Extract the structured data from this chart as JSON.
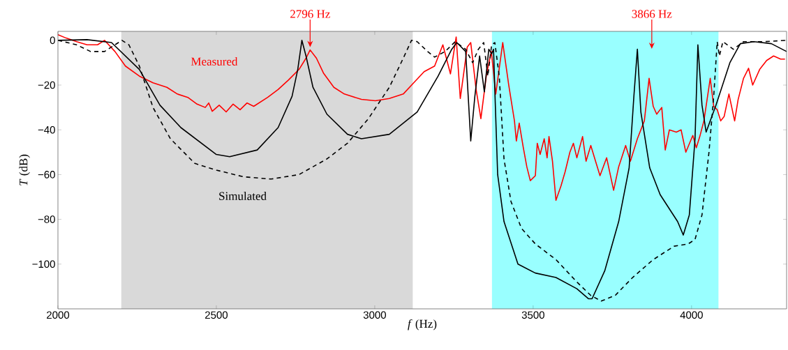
{
  "chart_data": {
    "type": "line",
    "xlabel": "*f* (Hz)",
    "ylabel": "*T* (dB)",
    "xlim": [
      2000,
      4300
    ],
    "ylim": [
      -120,
      4
    ],
    "xticks": [
      2000,
      2500,
      3000,
      3500,
      4000
    ],
    "yticks": [
      {
        "value": -100,
        "label": "−100"
      },
      {
        "value": -80,
        "label": "−80"
      },
      {
        "value": -60,
        "label": "−60"
      },
      {
        "value": -40,
        "label": "−40"
      },
      {
        "value": -20,
        "label": "−20"
      },
      0
    ],
    "bands": [
      {
        "axis": "x",
        "from": 2200,
        "to": 3120,
        "color": "#d9d9d9"
      },
      {
        "axis": "x",
        "from": 3370,
        "to": 4085,
        "color": "#99ffff"
      }
    ],
    "annotations": [
      {
        "text": "2796 Hz",
        "x": 2796,
        "y": -4.3
      },
      "3866 Hz"
    ],
    "marker": "none",
    "series": [
      {
        "name": "Measured",
        "color": "#ff0000",
        "line_style": "solid",
        "x": [
          2000,
          2026,
          2059,
          2092,
          2125,
          2147,
          2180,
          2213,
          2257,
          2300,
          2344,
          2377,
          2410,
          2439,
          2465,
          2476,
          2487,
          2509,
          2531,
          2553,
          2575,
          2597,
          2618,
          2662,
          2695,
          2728,
          2761,
          2783,
          2796,
          2816,
          2838,
          2871,
          2904,
          2958,
          3002,
          3046,
          3090,
          3123,
          3156,
          3189,
          3215,
          3239,
          3257,
          3270,
          3292,
          3303,
          3320,
          3335,
          3353,
          3368,
          3382,
          3404,
          3423,
          3441,
          3447,
          3456,
          3469,
          3480,
          3491,
          3507,
          3513,
          3522,
          3535,
          3544,
          3550,
          3561,
          3572,
          3588,
          3601,
          3616,
          3627,
          3638,
          3656,
          3667,
          3682,
          3697,
          3711,
          3732,
          3754,
          3770,
          3792,
          3807,
          3829,
          3851,
          3866,
          3879,
          3890,
          3906,
          3917,
          3930,
          3952,
          3967,
          3982,
          4004,
          4015,
          4026,
          4039,
          4059,
          4070,
          4081,
          4092,
          4103,
          4118,
          4136,
          4147,
          4164,
          4180,
          4193,
          4215,
          4237,
          4259,
          4281,
          4295
        ],
        "values": [
          2.5,
          1,
          -0.6,
          -2,
          -2,
          0,
          -5,
          -11.5,
          -16,
          -19,
          -21,
          -24,
          -25.5,
          -28.5,
          -30,
          -28,
          -31.7,
          -29,
          -32,
          -28.5,
          -31,
          -28,
          -29.5,
          -25.5,
          -22,
          -17.7,
          -13,
          -8,
          -4.3,
          -8,
          -14.6,
          -21,
          -24,
          -26.4,
          -27,
          -26,
          -24,
          -19,
          -14,
          -11.5,
          -2,
          -15,
          1.5,
          -26,
          -3,
          -1,
          -22,
          -35,
          -15,
          -5,
          -24,
          -1,
          -20,
          -36,
          -45,
          -37,
          -48,
          -56.5,
          -62.7,
          -60.5,
          -46,
          -51,
          -44,
          -52.5,
          -43,
          -54,
          -71.5,
          -65,
          -58.7,
          -50,
          -46,
          -52.5,
          -43,
          -54,
          -47,
          -54,
          -60.5,
          -52.5,
          -67,
          -56.5,
          -47,
          -54,
          -44,
          -36,
          -17,
          -29.5,
          -33,
          -30,
          -49,
          -40,
          -41,
          -40,
          -50,
          -42.5,
          -48,
          -43,
          -36,
          -17,
          -29.5,
          -31,
          -36,
          -34,
          -24,
          -36,
          -26.5,
          -17,
          -12.5,
          -20,
          -13,
          -9,
          -7,
          -8.4,
          -8.4
        ]
      },
      {
        "name": "Simulated",
        "color": "#000000",
        "line_style": "solid",
        "x": [
          2000,
          2092,
          2169,
          2257,
          2322,
          2388,
          2500,
          2542,
          2629,
          2695,
          2739,
          2757,
          2770,
          2783,
          2805,
          2849,
          2914,
          2958,
          3046,
          3134,
          3200,
          3243,
          3259,
          3287,
          3303,
          3316,
          3331,
          3346,
          3360,
          3369,
          3375,
          3379,
          3388,
          3408,
          3452,
          3507,
          3572,
          3638,
          3675,
          3686,
          3726,
          3770,
          3803,
          3818,
          3829,
          3840,
          3868,
          3901,
          3956,
          3974,
          3993,
          4011,
          4020,
          4033,
          4046,
          4077,
          4121,
          4154,
          4197,
          4252,
          4300
        ],
        "values": [
          0,
          0.3,
          -1,
          -13,
          -29,
          -39,
          -51,
          -52,
          -49,
          -39,
          -25,
          -13,
          0,
          -7,
          -21,
          -33,
          -42,
          -44,
          -42,
          -32,
          -16,
          -4,
          -1,
          -5,
          -45,
          -25,
          -7,
          -23,
          -4,
          -6,
          -4,
          -22,
          -60,
          -81,
          -100,
          -104,
          -106,
          -111,
          -115.5,
          -115.5,
          -103,
          -81,
          -57,
          -25,
          -4,
          -32,
          -57,
          -69,
          -81,
          -87,
          -78,
          -44,
          -2,
          -29,
          -41,
          -29,
          -10,
          -1.5,
          -0.6,
          -1.5,
          -5
        ]
      },
      {
        "color": "#000000",
        "line_style": "dashed",
        "x": [
          2000,
          2059,
          2103,
          2147,
          2180,
          2202,
          2224,
          2257,
          2300,
          2355,
          2432,
          2500,
          2586,
          2673,
          2761,
          2849,
          2914,
          2980,
          3046,
          3090,
          3116,
          3134,
          3167,
          3189,
          3222,
          3254,
          3287,
          3309,
          3327,
          3344,
          3357,
          3369,
          3379,
          3393,
          3408,
          3430,
          3463,
          3507,
          3572,
          3638,
          3682,
          3715,
          3759,
          3814,
          3879,
          3945,
          3989,
          4011,
          4033,
          4055,
          4070,
          4081,
          4088,
          4099,
          4132,
          4164,
          4230,
          4300
        ],
        "values": [
          0,
          -2,
          -5,
          -5,
          -2,
          0,
          -2,
          -11.5,
          -30,
          -44,
          -55,
          -58,
          -61,
          -62,
          -60,
          -53,
          -46,
          -35,
          -21,
          -8,
          0,
          -0.6,
          -5,
          -7.5,
          -5,
          -0.6,
          -4,
          -10,
          -4,
          -1,
          -16,
          -2,
          -1,
          -16,
          -53,
          -72,
          -84,
          -91,
          -98,
          -108,
          -114,
          -116.5,
          -114,
          -106,
          -98,
          -92,
          -91,
          -89,
          -78,
          -50,
          -25,
          -0.6,
          -7,
          -0.6,
          -4,
          -0.6,
          -0.6,
          0
        ]
      }
    ]
  }
}
